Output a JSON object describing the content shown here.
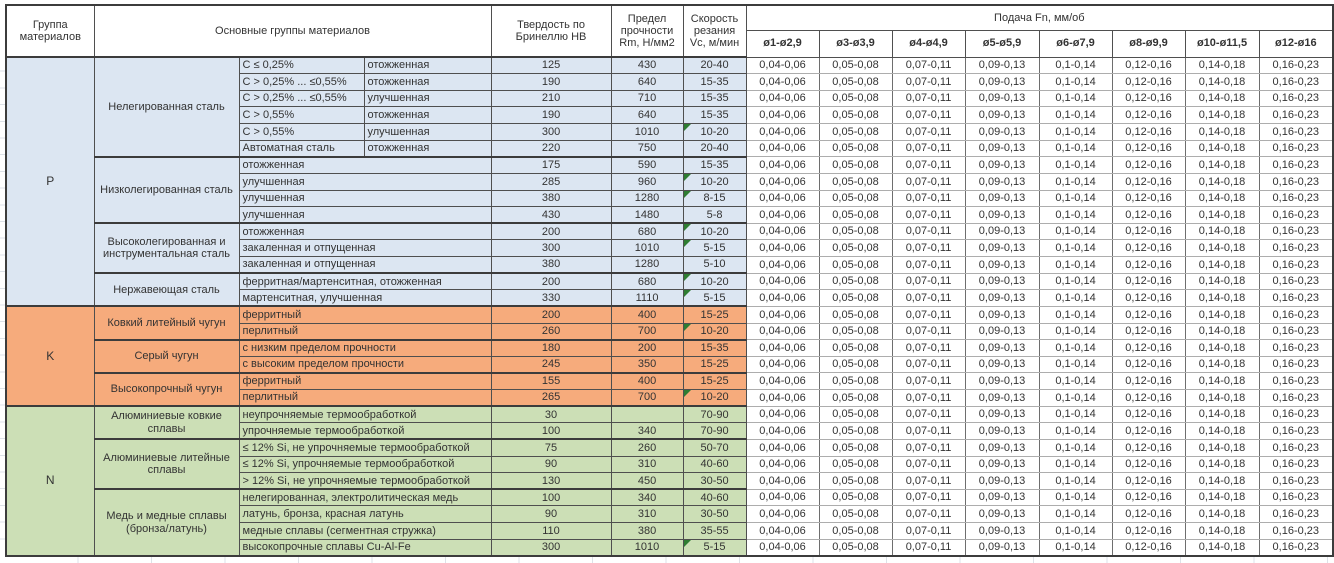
{
  "header": {
    "col_group": "Группа материалов",
    "col_main_groups": "Основные группы материалов",
    "col_hardness": "Твердость по Бринеллю HB",
    "col_strength": "Предел прочности Rm, Н/мм2",
    "col_speed": "Скорость резания Vc, м/мин",
    "col_feed": "Подача Fn, мм/об",
    "feed_columns": [
      "ø1-ø2,9",
      "ø3-ø3,9",
      "ø4-ø4,9",
      "ø5-ø5,9",
      "ø6-ø7,9",
      "ø8-ø9,9",
      "ø10-ø11,5",
      "ø12-ø16"
    ]
  },
  "feed_values": [
    "0,04-0,06",
    "0,05-0,08",
    "0,07-0,11",
    "0,09-0,13",
    "0,1-0,14",
    "0,12-0,16",
    "0,14-0,18",
    "0,16-0,23"
  ],
  "colors": {
    "group_p": "#dce6f2",
    "group_k": "#f6ab7c",
    "group_n": "#ccdfb6",
    "marker": "#2e7d32"
  },
  "groups": [
    {
      "letter": "P",
      "color": "#dce6f2",
      "subgroups": [
        {
          "name": "Нелегированная сталь",
          "rows": [
            {
              "desc": "C ≤ 0,25%",
              "desc2": "отожженная",
              "hb": "125",
              "rm": "430",
              "vc": "20-40",
              "marker": false
            },
            {
              "desc": "C > 0,25% ... ≤0,55%",
              "desc2": "отожженная",
              "hb": "190",
              "rm": "640",
              "vc": "15-35",
              "marker": false
            },
            {
              "desc": "C > 0,25% ... ≤0,55%",
              "desc2": "улучшенная",
              "hb": "210",
              "rm": "710",
              "vc": "15-35",
              "marker": false
            },
            {
              "desc": "C > 0,55%",
              "desc2": "отожженная",
              "hb": "190",
              "rm": "640",
              "vc": "15-35",
              "marker": false
            },
            {
              "desc": "C > 0,55%",
              "desc2": "улучшенная",
              "hb": "300",
              "rm": "1010",
              "vc": "10-20",
              "marker": true
            },
            {
              "desc": "Автоматная сталь",
              "desc2": "отожженная",
              "hb": "220",
              "rm": "750",
              "vc": "20-40",
              "marker": false
            }
          ]
        },
        {
          "name": "Низколегированная сталь",
          "rows": [
            {
              "desc": "отожженная",
              "desc2": null,
              "hb": "175",
              "rm": "590",
              "vc": "15-35",
              "marker": false
            },
            {
              "desc": "улучшенная",
              "desc2": null,
              "hb": "285",
              "rm": "960",
              "vc": "10-20",
              "marker": true
            },
            {
              "desc": "улучшенная",
              "desc2": null,
              "hb": "380",
              "rm": "1280",
              "vc": "8-15",
              "marker": true
            },
            {
              "desc": "улучшенная",
              "desc2": null,
              "hb": "430",
              "rm": "1480",
              "vc": "5-8",
              "marker": false
            }
          ]
        },
        {
          "name": "Высоколегированная и инструментальная сталь",
          "rows": [
            {
              "desc": "отожженная",
              "desc2": null,
              "hb": "200",
              "rm": "680",
              "vc": "10-20",
              "marker": true
            },
            {
              "desc": "закаленная и отпущенная",
              "desc2": null,
              "hb": "300",
              "rm": "1010",
              "vc": "5-15",
              "marker": true
            },
            {
              "desc": "закаленная и отпущенная",
              "desc2": null,
              "hb": "380",
              "rm": "1280",
              "vc": "5-10",
              "marker": false
            }
          ]
        },
        {
          "name": "Нержавеющая сталь",
          "rows": [
            {
              "desc": "ферритная/мартенситная, отожженная",
              "desc2": null,
              "hb": "200",
              "rm": "680",
              "vc": "10-20",
              "marker": true
            },
            {
              "desc": "мартенситная, улучшенная",
              "desc2": null,
              "hb": "330",
              "rm": "1110",
              "vc": "5-15",
              "marker": true
            }
          ]
        }
      ]
    },
    {
      "letter": "K",
      "color": "#f6ab7c",
      "subgroups": [
        {
          "name": "Ковкий литейный чугун",
          "rows": [
            {
              "desc": "ферритный",
              "desc2": null,
              "hb": "200",
              "rm": "400",
              "vc": "15-25",
              "marker": false
            },
            {
              "desc": "перлитный",
              "desc2": null,
              "hb": "260",
              "rm": "700",
              "vc": "10-20",
              "marker": true
            }
          ]
        },
        {
          "name": "Серый чугун",
          "rows": [
            {
              "desc": "с низким пределом прочности",
              "desc2": null,
              "hb": "180",
              "rm": "200",
              "vc": "15-35",
              "marker": false
            },
            {
              "desc": "с высоким пределом прочности",
              "desc2": null,
              "hb": "245",
              "rm": "350",
              "vc": "15-25",
              "marker": false
            }
          ]
        },
        {
          "name": "Высокопрочный чугун",
          "rows": [
            {
              "desc": "ферритный",
              "desc2": null,
              "hb": "155",
              "rm": "400",
              "vc": "15-25",
              "marker": false
            },
            {
              "desc": "перлитный",
              "desc2": null,
              "hb": "265",
              "rm": "700",
              "vc": "10-20",
              "marker": true
            }
          ]
        }
      ]
    },
    {
      "letter": "N",
      "color": "#ccdfb6",
      "subgroups": [
        {
          "name": "Алюминиевые ковкие сплавы",
          "rows": [
            {
              "desc": "неупрочняемые термообработкой",
              "desc2": null,
              "hb": "30",
              "rm": "",
              "vc": "70-90",
              "marker": false
            },
            {
              "desc": "упрочняемые термообработкой",
              "desc2": null,
              "hb": "100",
              "rm": "340",
              "vc": "70-90",
              "marker": false
            }
          ]
        },
        {
          "name": "Алюминиевые литейные сплавы",
          "rows": [
            {
              "desc": "≤ 12% Si, не упрочняемые термообработкой",
              "desc2": null,
              "hb": "75",
              "rm": "260",
              "vc": "50-70",
              "marker": false
            },
            {
              "desc": "≤ 12% Si, упрочняемые термообработкой",
              "desc2": null,
              "hb": "90",
              "rm": "310",
              "vc": "40-60",
              "marker": false
            },
            {
              "desc": "> 12% Si, не упрочняемые термообработкой",
              "desc2": null,
              "hb": "130",
              "rm": "450",
              "vc": "30-50",
              "marker": false
            }
          ]
        },
        {
          "name": "Медь и медные сплавы (бронза/латунь)",
          "rows": [
            {
              "desc": "нелегированная, электролитическая медь",
              "desc2": null,
              "hb": "100",
              "rm": "340",
              "vc": "40-60",
              "marker": false
            },
            {
              "desc": "латунь, бронза, красная латунь",
              "desc2": null,
              "hb": "90",
              "rm": "310",
              "vc": "30-50",
              "marker": false
            },
            {
              "desc": "медные сплавы (сегментная стружка)",
              "desc2": null,
              "hb": "110",
              "rm": "380",
              "vc": "35-55",
              "marker": false
            },
            {
              "desc": "высокопрочные сплавы Cu-Al-Fe",
              "desc2": null,
              "hb": "300",
              "rm": "1010",
              "vc": "5-15",
              "marker": true
            }
          ]
        }
      ]
    }
  ]
}
